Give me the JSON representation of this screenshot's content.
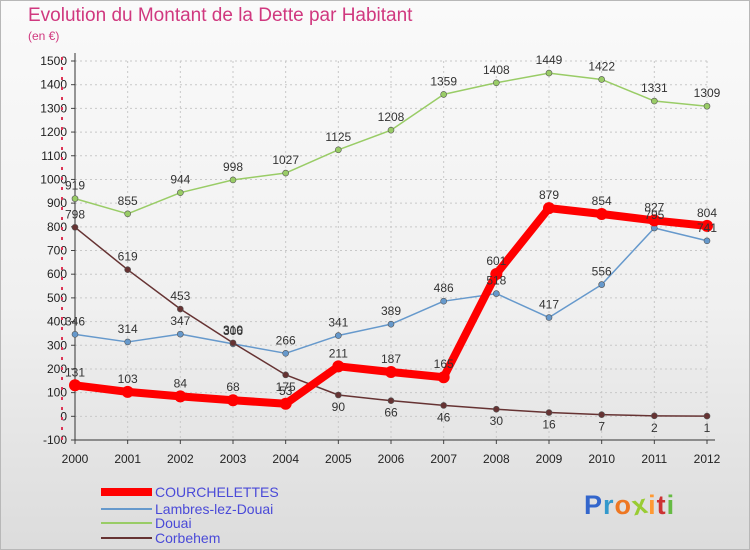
{
  "title": "Evolution du Montant de la Dette par Habitant",
  "unit": "(en €)",
  "colors": {
    "courchelettes": "#ff0000",
    "lambres": "#6699cc",
    "douai": "#99cc66",
    "corbehem": "#663333"
  },
  "chart_data": {
    "type": "line",
    "x": [
      "2000",
      "2001",
      "2002",
      "2003",
      "2004",
      "2005",
      "2006",
      "2007",
      "2008",
      "2009",
      "2010",
      "2011",
      "2012"
    ],
    "ylim": [
      -100,
      1500
    ],
    "yticks": [
      -100,
      0,
      100,
      200,
      300,
      400,
      500,
      600,
      700,
      800,
      900,
      1000,
      1100,
      1200,
      1300,
      1400,
      1500
    ],
    "grid": true,
    "legend_position": "bottom-left",
    "series": [
      {
        "name": "COURCHELETTES",
        "color": "#ff0000",
        "values": [
          131,
          103,
          84,
          68,
          53,
          211,
          187,
          165,
          601,
          879,
          854,
          827,
          804
        ]
      },
      {
        "name": "Lambres-lez-Douai",
        "color": "#6699cc",
        "values": [
          346,
          314,
          347,
          306,
          266,
          341,
          389,
          486,
          518,
          417,
          556,
          795,
          741
        ]
      },
      {
        "name": "Douai",
        "color": "#99cc66",
        "values": [
          919,
          855,
          944,
          998,
          1027,
          1125,
          1208,
          1359,
          1408,
          1449,
          1422,
          1331,
          1309
        ]
      },
      {
        "name": "Corbehem",
        "color": "#663333",
        "values": [
          798,
          619,
          453,
          310,
          175,
          90,
          66,
          46,
          30,
          16,
          7,
          2,
          1
        ]
      }
    ]
  },
  "logo": {
    "letters": [
      "P",
      "r",
      "o",
      "x",
      "i",
      "t",
      "i"
    ],
    "colors": [
      "#3366cc",
      "#3399cc",
      "#ee7722",
      "#99cc33",
      "#ff9933",
      "#cc3333",
      "#66bb44"
    ]
  }
}
